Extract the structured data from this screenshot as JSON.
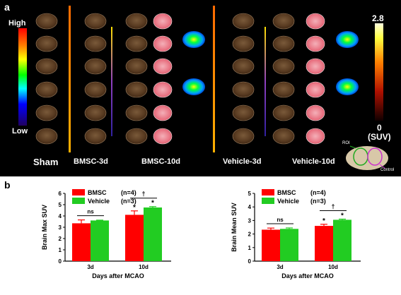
{
  "panel_a": {
    "label": "a",
    "left_scale": {
      "high": "High",
      "low": "Low"
    },
    "right_scale": {
      "max": "2.8",
      "min": "0",
      "unit": "(SUV)"
    },
    "groups": [
      "Sham",
      "BMSC-3d",
      "BMSC-10d",
      "Vehicle-3d",
      "Vehicle-10d"
    ],
    "inset": {
      "roi": "ROI",
      "control": "Control"
    }
  },
  "panel_b": {
    "label": "b",
    "chart_data": [
      {
        "type": "bar",
        "categories": [
          "3d",
          "10d"
        ],
        "series": [
          {
            "name": "BMSC",
            "n": "(n=4)",
            "color": "#ff0000",
            "values": [
              3.35,
              4.1
            ],
            "errors": [
              0.3,
              0.35
            ]
          },
          {
            "name": "Vehicle",
            "n": "(n=3)",
            "color": "#22cc22",
            "values": [
              3.6,
              4.75
            ],
            "errors": [
              0.03,
              0.08
            ]
          }
        ],
        "ylabel": "Brain Max SUV",
        "xlabel": "Days after MCAO",
        "ylim": [
          0,
          6
        ],
        "yticks": [
          "0",
          "1",
          "2",
          "3",
          "4",
          "5",
          "6"
        ],
        "annotations": {
          "ns": "ns",
          "dagger": "†",
          "star": "*"
        }
      },
      {
        "type": "bar",
        "categories": [
          "3d",
          "10d"
        ],
        "series": [
          {
            "name": "BMSC",
            "n": "(n=4)",
            "color": "#ff0000",
            "values": [
              2.32,
              2.6
            ],
            "errors": [
              0.12,
              0.12
            ]
          },
          {
            "name": "Vehicle",
            "n": "(n=3)",
            "color": "#22cc22",
            "values": [
              2.38,
              3.05
            ],
            "errors": [
              0.07,
              0.05
            ]
          }
        ],
        "ylabel": "Brain Mean SUV",
        "xlabel": "Days after MCAO",
        "ylim": [
          0,
          5
        ],
        "yticks": [
          "0",
          "1",
          "2",
          "3",
          "4",
          "5"
        ],
        "annotations": {
          "ns": "ns",
          "dagger": "†",
          "star": "*"
        }
      }
    ]
  }
}
